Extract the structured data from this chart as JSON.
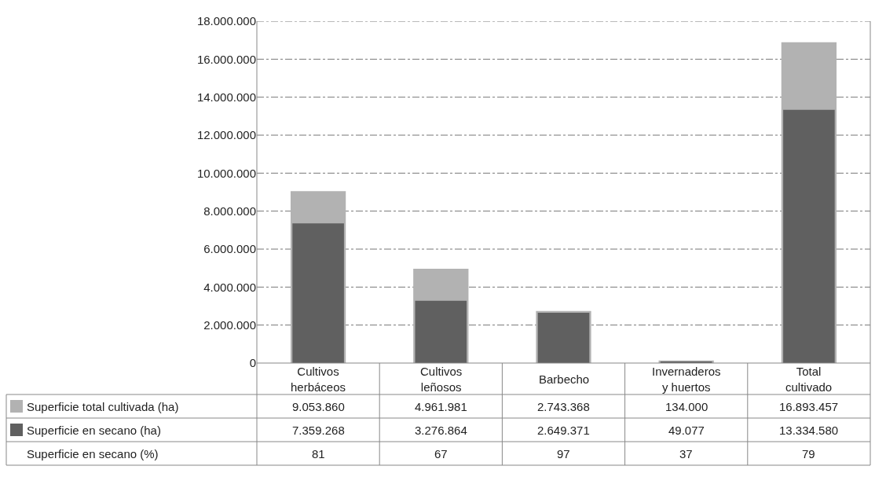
{
  "chart_data": {
    "type": "bar",
    "categories": [
      "Cultivos\nherbáceos",
      "Cultivos\nleñosos",
      "Barbecho",
      "Invernaderos\ny huertos",
      "Total\ncultivado"
    ],
    "series": [
      {
        "name": "Superficie total cultivada (ha)",
        "color": "#b2b2b2",
        "values": [
          9053860,
          4961981,
          2743368,
          134000,
          16893457
        ],
        "value_labels": [
          "9.053.860",
          "4.961.981",
          "2.743.368",
          "134.000",
          "16.893.457"
        ]
      },
      {
        "name": "Superficie en secano (ha)",
        "color": "#606060",
        "values": [
          7359268,
          3276864,
          2649371,
          49077,
          13334580
        ],
        "value_labels": [
          "7.359.268",
          "3.276.864",
          "2.649.371",
          "49.077",
          "13.334.580"
        ]
      }
    ],
    "annotations": [
      "Superficie en secano (%)",
      "81",
      "67",
      "97",
      "37",
      "79"
    ],
    "ylim": [
      0,
      18000000
    ],
    "yticks": [
      {
        "value": 0,
        "label": "0"
      },
      {
        "value": 2000000,
        "label": "2.000.000"
      },
      {
        "value": 4000000,
        "label": "4.000.000"
      },
      {
        "value": 6000000,
        "label": "6.000.000"
      },
      {
        "value": 8000000,
        "label": "8.000.000"
      },
      {
        "value": 10000000,
        "label": "10.000.000"
      },
      {
        "value": 12000000,
        "label": "12.000.000"
      },
      {
        "value": 14000000,
        "label": "14.000.000"
      },
      {
        "value": 16000000,
        "label": "16.000.000"
      },
      {
        "value": 18000000,
        "label": "18.000.000"
      }
    ],
    "grid": "y",
    "legend": "bottom left"
  }
}
